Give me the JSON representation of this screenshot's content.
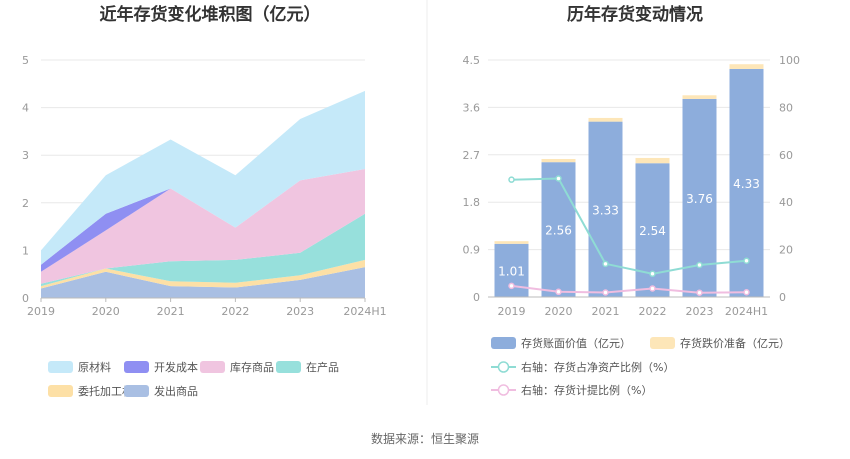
{
  "chart_data": [
    {
      "type": "area",
      "title": "近年存货变化堆积图（亿元）",
      "categories": [
        "2019",
        "2020",
        "2021",
        "2022",
        "2023",
        "2024H1"
      ],
      "y_ticks": [
        "0",
        "1",
        "2",
        "3",
        "4",
        "5"
      ],
      "ylim": [
        0,
        5
      ],
      "stacked": true,
      "grid": true,
      "legend_position": "bottom",
      "series": [
        {
          "name": "发出商品",
          "color": "#a9bfe3",
          "values": [
            0.2,
            0.55,
            0.25,
            0.22,
            0.38,
            0.65
          ]
        },
        {
          "name": "委托加工材料",
          "color": "#fde0a6",
          "values": [
            0.05,
            0.07,
            0.1,
            0.1,
            0.1,
            0.15
          ]
        },
        {
          "name": "在产品",
          "color": "#97e0dc",
          "values": [
            0.05,
            0.0,
            0.42,
            0.48,
            0.47,
            0.97
          ]
        },
        {
          "name": "库存商品",
          "color": "#f0c5e0",
          "values": [
            0.25,
            0.8,
            1.53,
            0.68,
            1.52,
            0.94
          ]
        },
        {
          "name": "开发成本",
          "color": "#8f8ff2",
          "values": [
            0.15,
            0.35,
            0.0,
            0.0,
            0.0,
            0.0
          ]
        },
        {
          "name": "原材料",
          "color": "#c5e9f9",
          "values": [
            0.3,
            0.81,
            1.03,
            1.1,
            1.29,
            1.64
          ]
        }
      ],
      "legend_order": [
        "原材料",
        "开发成本",
        "库存商品",
        "在产品",
        "委托加工材料",
        "发出商品"
      ]
    },
    {
      "type": "bar",
      "title": "历年存货变动情况",
      "categories": [
        "2019",
        "2020",
        "2021",
        "2022",
        "2023",
        "2024H1"
      ],
      "left_axis": {
        "ticks": [
          "0",
          "0.9",
          "1.8",
          "2.7",
          "3.6",
          "4.5"
        ],
        "ylim": [
          0,
          4.5
        ]
      },
      "right_axis": {
        "ticks": [
          "0",
          "20",
          "40",
          "60",
          "80",
          "100"
        ],
        "ylim": [
          0,
          100
        ]
      },
      "stacked": true,
      "grid": true,
      "legend_position": "bottom",
      "series": [
        {
          "name": "存货账面价值（亿元）",
          "color": "#8daddc",
          "axis": "left",
          "values": [
            1.01,
            2.56,
            3.33,
            2.54,
            3.76,
            4.33
          ],
          "data_labels": [
            "1.01",
            "2.56",
            "3.33",
            "2.54",
            "3.76",
            "4.33"
          ]
        },
        {
          "name": "存货跌价准备（亿元）",
          "color": "#fde6b8",
          "axis": "left",
          "values": [
            0.05,
            0.06,
            0.07,
            0.1,
            0.07,
            0.09
          ]
        }
      ],
      "lines": [
        {
          "name": "右轴：存货占净资产比例（%）",
          "color": "#8fdcd4",
          "axis": "right",
          "values": [
            49.5,
            50.0,
            14.0,
            9.8,
            13.5,
            15.3
          ]
        },
        {
          "name": "右轴：存货计提比例（%）",
          "color": "#f0bde0",
          "axis": "right",
          "values": [
            4.7,
            2.2,
            1.9,
            3.6,
            1.8,
            2.0
          ]
        }
      ]
    }
  ],
  "footer": {
    "source": "数据来源：恒生聚源"
  }
}
